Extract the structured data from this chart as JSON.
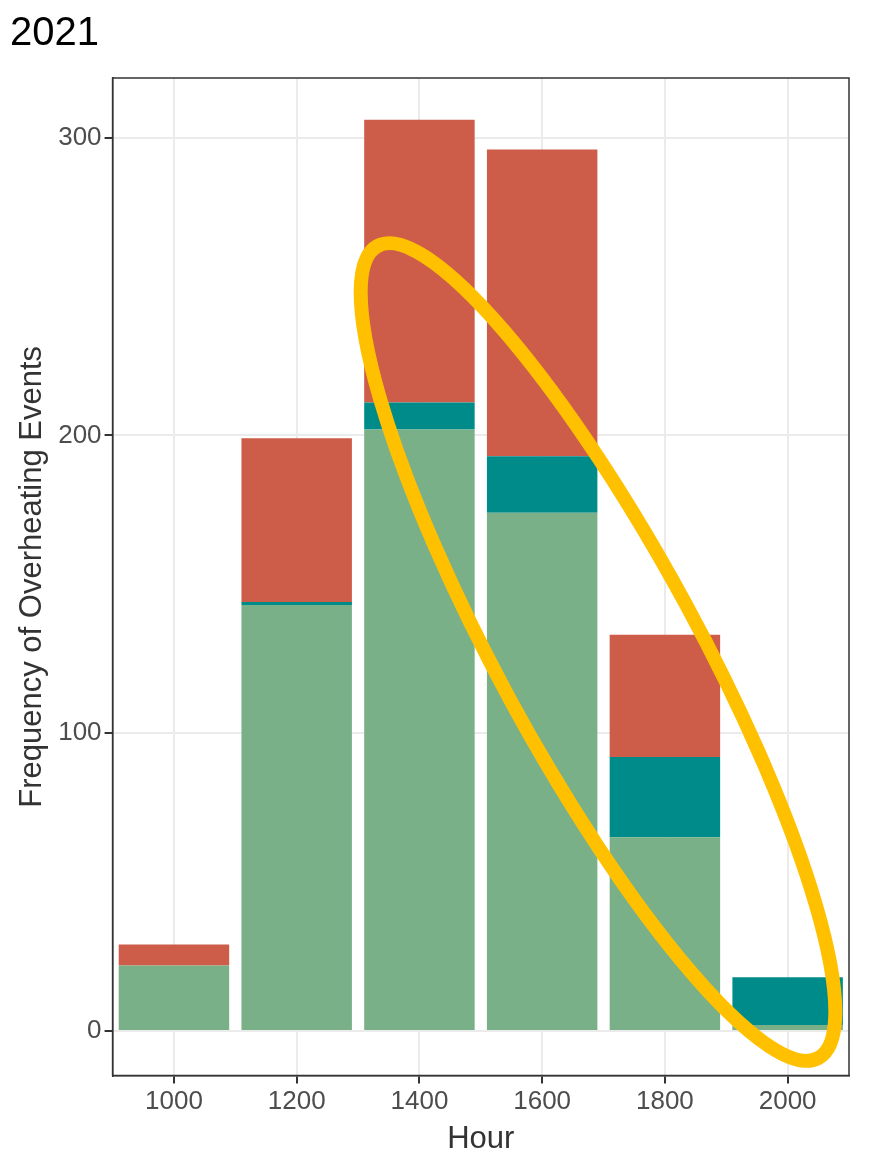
{
  "chart_data": {
    "type": "bar",
    "title": "2021",
    "xlabel": "Hour",
    "ylabel": "Frequency of Overheating Events",
    "categories": [
      "1000",
      "1200",
      "1400",
      "1600",
      "1800",
      "2000"
    ],
    "stacked": true,
    "series": [
      {
        "color": "#79b087",
        "values": [
          22,
          143,
          202,
          174,
          65,
          2
        ]
      },
      {
        "color": "#008b8b",
        "values": [
          0,
          1,
          9,
          19,
          27,
          16
        ]
      },
      {
        "color": "#cd5c48",
        "values": [
          7,
          55,
          95,
          103,
          41,
          0
        ]
      }
    ],
    "ylim": [
      -15,
      320
    ],
    "yticks": [
      0,
      100,
      200,
      300
    ],
    "grid": true,
    "legend": false
  }
}
